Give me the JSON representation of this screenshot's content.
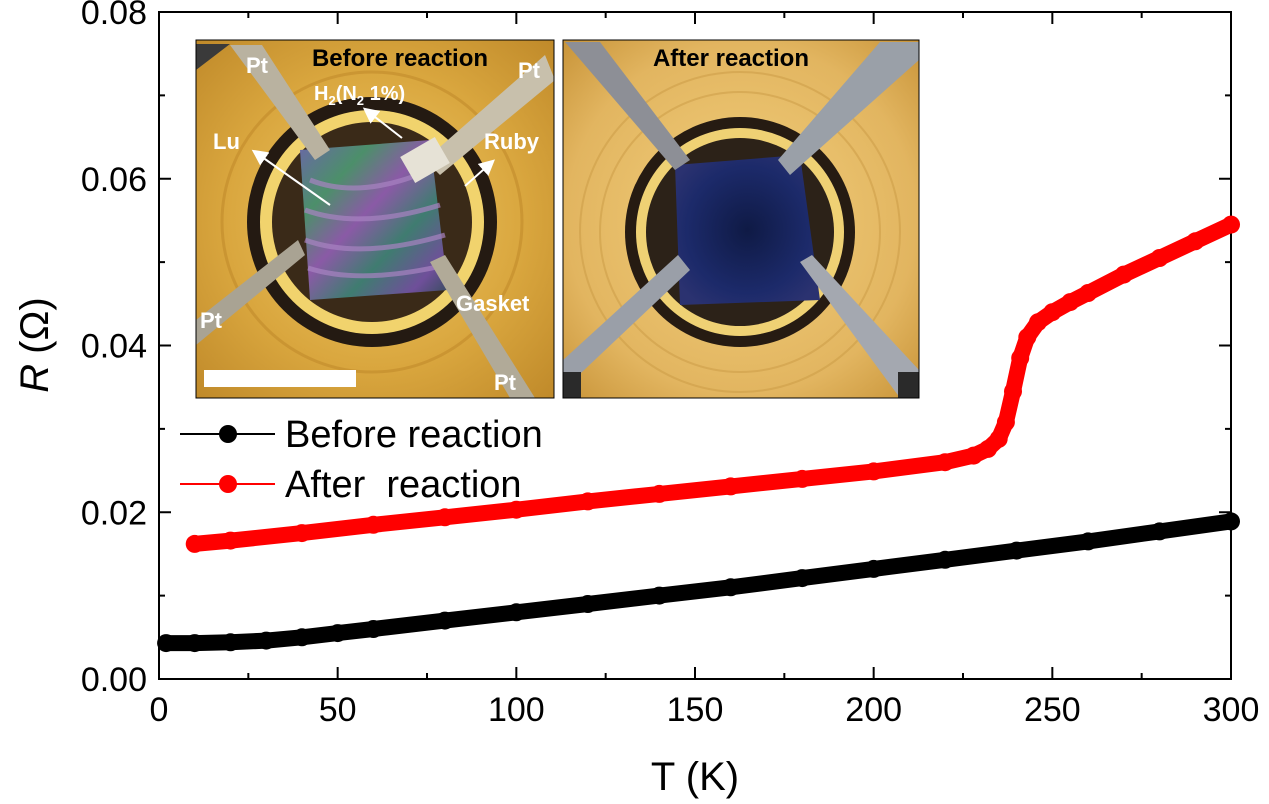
{
  "chart_data": {
    "type": "line",
    "xlabel": "T (K)",
    "ylabel_symbol": "R",
    "ylabel_unit": "(Ω)",
    "xlim": [
      0,
      300
    ],
    "ylim": [
      0,
      0.08
    ],
    "xticks": [
      0,
      50,
      100,
      150,
      200,
      250,
      300
    ],
    "yticks": [
      0.0,
      0.02,
      0.04,
      0.06,
      0.08
    ],
    "xtick_labels": [
      "0",
      "50",
      "100",
      "150",
      "200",
      "250",
      "300"
    ],
    "ytick_labels": [
      "0.00",
      "0.02",
      "0.04",
      "0.06",
      "0.08"
    ],
    "legend_position": "middle-left",
    "series": [
      {
        "name": "Before reaction",
        "color": "#000000",
        "x": [
          2,
          10,
          20,
          30,
          40,
          50,
          60,
          80,
          100,
          120,
          140,
          160,
          180,
          200,
          220,
          240,
          260,
          280,
          300
        ],
        "y": [
          0.0043,
          0.0043,
          0.0044,
          0.0046,
          0.005,
          0.0055,
          0.006,
          0.007,
          0.008,
          0.009,
          0.01,
          0.011,
          0.0121,
          0.0132,
          0.0143,
          0.0154,
          0.0165,
          0.0177,
          0.0189
        ]
      },
      {
        "name": "After  reaction",
        "color": "#ff0000",
        "x": [
          10,
          20,
          40,
          60,
          80,
          100,
          120,
          140,
          160,
          180,
          200,
          220,
          228,
          232,
          235,
          237,
          239,
          241,
          243,
          246,
          250,
          255,
          260,
          270,
          280,
          290,
          300
        ],
        "y": [
          0.0162,
          0.0166,
          0.0175,
          0.0185,
          0.0194,
          0.0203,
          0.0213,
          0.0222,
          0.0231,
          0.024,
          0.0249,
          0.026,
          0.0268,
          0.0276,
          0.0288,
          0.0308,
          0.0345,
          0.0385,
          0.041,
          0.0428,
          0.044,
          0.0452,
          0.0463,
          0.0485,
          0.0505,
          0.0525,
          0.0545
        ]
      }
    ],
    "inset": {
      "panels": [
        {
          "title": "Before reaction",
          "labels": [
            "Pt",
            "Pt",
            "H2(N2 1%)",
            "Lu",
            "Ruby",
            "Pt",
            "Gasket",
            "Pt"
          ]
        },
        {
          "title": "After reaction",
          "labels": []
        }
      ],
      "h2_main": "H",
      "h2_sub": "2",
      "n2_open": "(N",
      "n2_sub": "2",
      "n2_close": " 1%)"
    }
  }
}
